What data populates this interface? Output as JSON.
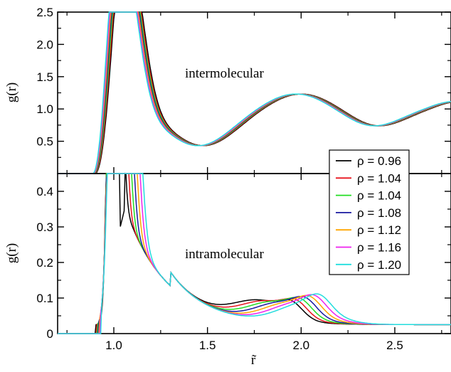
{
  "chart_data": [
    {
      "type": "line",
      "panel": "top",
      "annotation": "intermolecular",
      "ylabel": "g(r)",
      "xlim": [
        0.7,
        2.8
      ],
      "ylim": [
        0.0,
        2.5
      ],
      "xticks": [
        1.0,
        1.5,
        2.0,
        2.5
      ],
      "yticks": [
        0.5,
        1.0,
        1.5,
        2.0,
        2.5
      ],
      "yticklabels": [
        "0.5",
        "1.0",
        "1.5",
        "2.0",
        "2.5"
      ],
      "key_points": {
        "first_peak": {
          "x": 1.07,
          "y": 2.28
        },
        "first_min": {
          "x": 1.48,
          "y": 0.44
        },
        "second_peak": {
          "x": 2.0,
          "y": 1.25
        },
        "second_min": {
          "x": 2.4,
          "y": 0.75
        }
      }
    },
    {
      "type": "line",
      "panel": "bottom",
      "annotation": "intramolecular",
      "ylabel": "g(r)",
      "xlabel": "r̃",
      "xlim": [
        0.7,
        2.8
      ],
      "ylim": [
        0.0,
        0.45
      ],
      "xticks": [
        1.0,
        1.5,
        2.0,
        2.5
      ],
      "xticklabels": [
        "1.0",
        "1.5",
        "2.0",
        "2.5"
      ],
      "yticks": [
        0.0,
        0.1,
        0.2,
        0.3,
        0.4
      ],
      "yticklabels": [
        "0",
        "0.1",
        "0.2",
        "0.3",
        "0.4"
      ],
      "key_points": {
        "dip_at_rho_0_96": {
          "x": 1.04,
          "y": 0.29
        },
        "local_peak_rho_0_96": {
          "x": 1.08,
          "y": 0.36
        },
        "min": {
          "x": 1.5,
          "y": 0.068
        },
        "broad_peak": {
          "x": 1.78,
          "y": 0.12
        },
        "shoulder": {
          "x": 1.93,
          "y": 0.11
        },
        "tail": {
          "x": 2.8,
          "y": 0.025
        }
      }
    }
  ],
  "legend": {
    "placement": "right, spanning both panels",
    "entries": [
      {
        "label": "ρ = 0.96",
        "color": "#000000"
      },
      {
        "label": "ρ = 1.04",
        "color": "#e8141e"
      },
      {
        "label": "ρ = 1.04",
        "color": "#22dd22"
      },
      {
        "label": "ρ = 1.08",
        "color": "#1a1aa0"
      },
      {
        "label": "ρ = 1.12",
        "color": "#ffa500"
      },
      {
        "label": "ρ = 1.16",
        "color": "#ee22ee"
      },
      {
        "label": "ρ = 1.20",
        "color": "#22dddd"
      }
    ]
  }
}
